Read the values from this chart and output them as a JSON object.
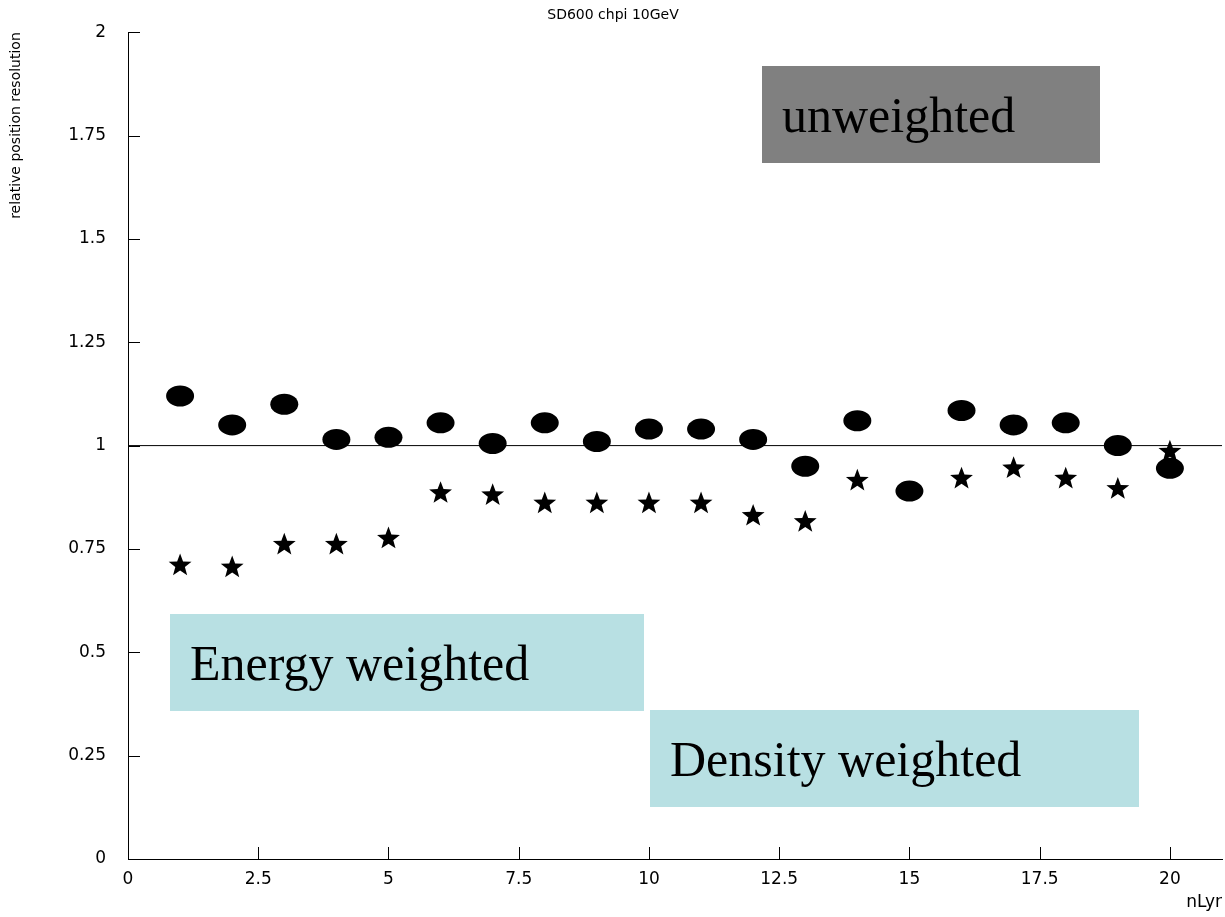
{
  "chart_data": {
    "type": "scatter",
    "title": "SD600 chpi 10GeV",
    "xlabel": "nLyr",
    "ylabel": "relative position resolution",
    "x": [
      1,
      2,
      3,
      4,
      5,
      6,
      7,
      8,
      9,
      10,
      11,
      12,
      13,
      14,
      15,
      16,
      17,
      18,
      19,
      20
    ],
    "series": [
      {
        "color": "#000000",
        "marker": "circle",
        "values": [
          1.12,
          1.05,
          1.1,
          1.015,
          1.02,
          1.055,
          1.005,
          1.055,
          1.01,
          1.04,
          1.04,
          1.015,
          0.95,
          1.06,
          0.89,
          1.085,
          1.05,
          1.055,
          1.0,
          0.945
        ]
      },
      {
        "color": "#000000",
        "marker": "star",
        "values": [
          0.71,
          0.705,
          0.76,
          0.76,
          0.775,
          0.885,
          0.88,
          0.86,
          0.86,
          0.86,
          0.86,
          0.83,
          0.815,
          0.915,
          null,
          0.92,
          0.945,
          0.92,
          0.895,
          0.985
        ]
      }
    ],
    "xlim": [
      0,
      21
    ],
    "xticks": [
      0,
      2.5,
      5,
      7.5,
      10,
      12.5,
      15,
      17.5,
      20
    ],
    "ylim": [
      0,
      2
    ],
    "yticks": [
      0,
      0.25,
      0.5,
      0.75,
      1,
      1.25,
      1.5,
      1.75,
      2
    ],
    "grid": false,
    "legend": false,
    "ref_lines": [
      {
        "axis": "y",
        "value": 1,
        "color": "#000000"
      }
    ],
    "annotations": [
      "unweighted",
      "Energy weighted",
      "Density weighted"
    ]
  }
}
